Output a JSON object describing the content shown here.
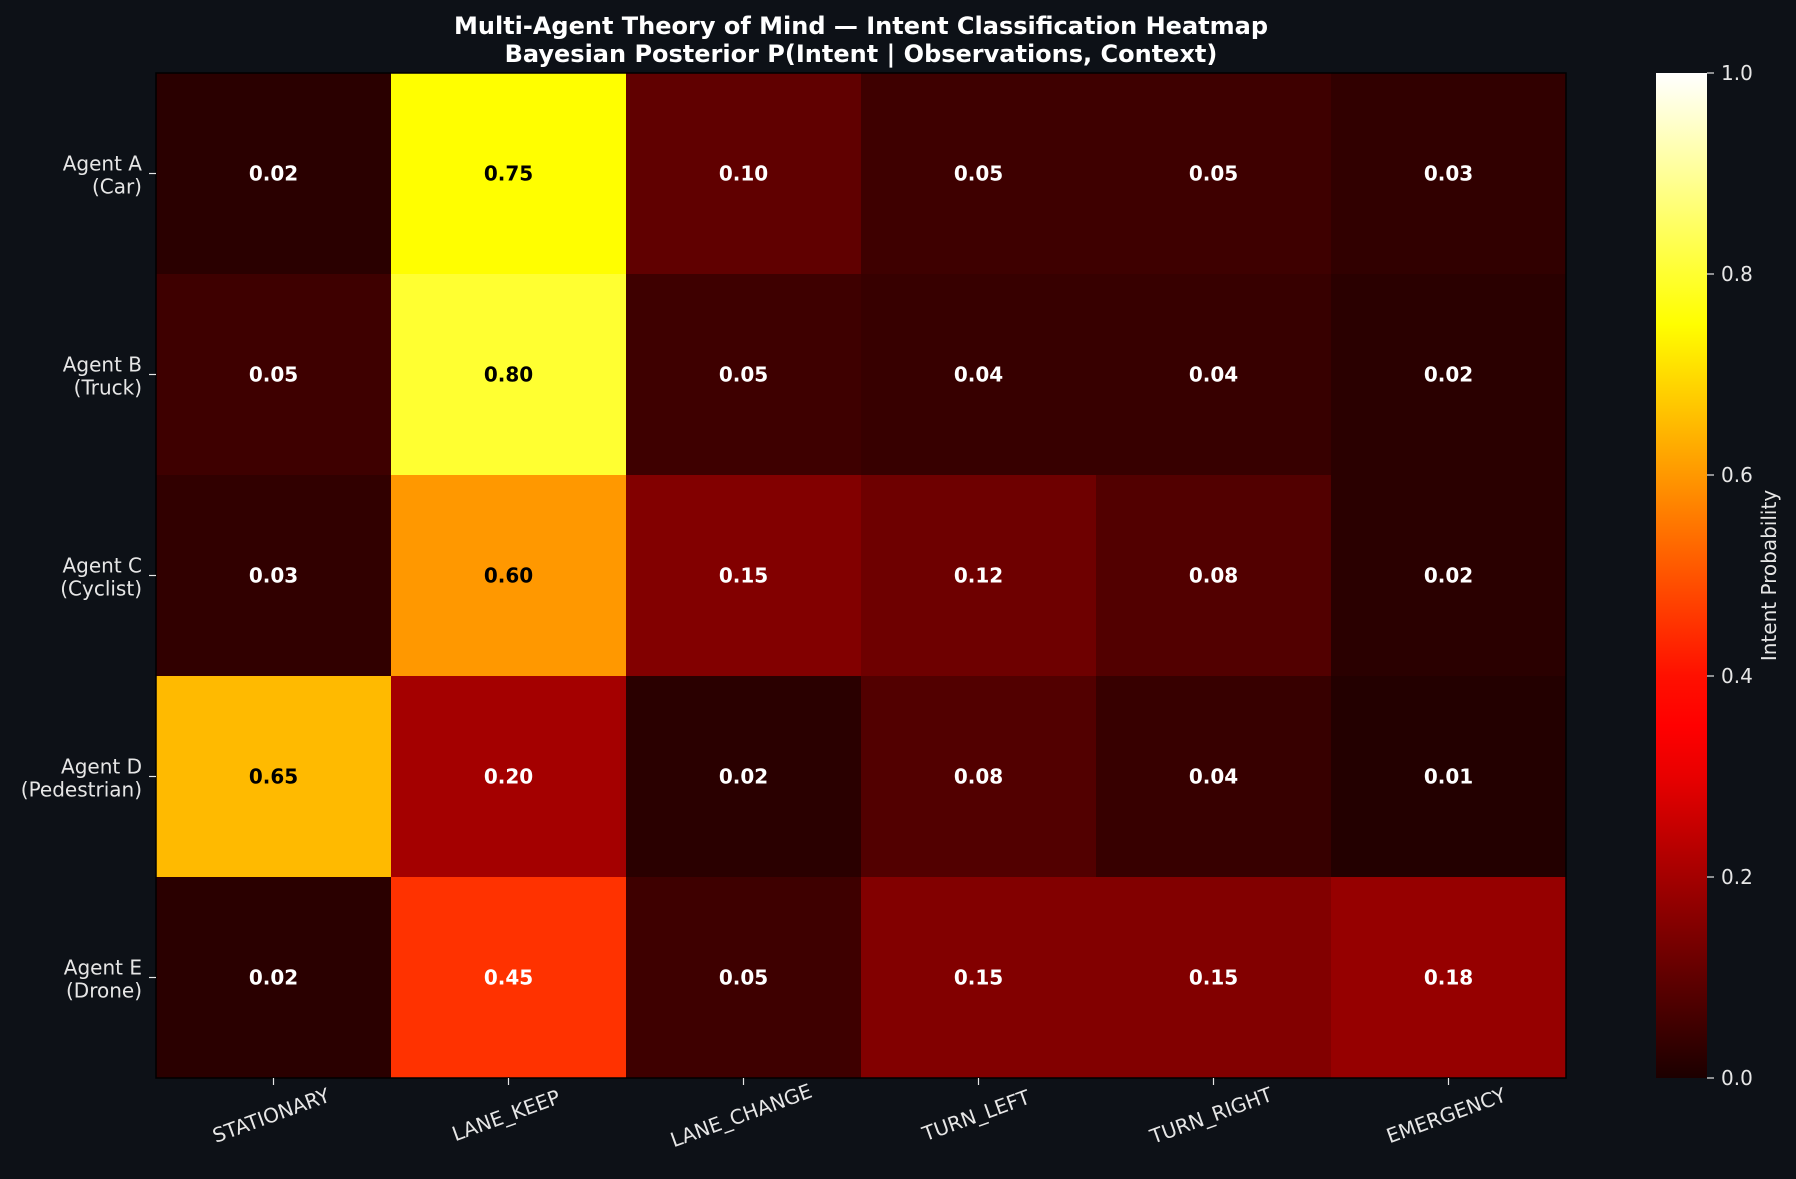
{
  "chart_data": {
    "type": "heatmap",
    "title_line1": "Multi-Agent Theory of Mind — Intent Classification Heatmap",
    "title_line2": "Bayesian Posterior P(Intent | Observations, Context)",
    "rows": [
      [
        "Agent A",
        "(Car)"
      ],
      [
        "Agent B",
        "(Truck)"
      ],
      [
        "Agent C",
        "(Cyclist)"
      ],
      [
        "Agent D",
        "(Pedestrian)"
      ],
      [
        "Agent E",
        "(Drone)"
      ]
    ],
    "columns": [
      "STATIONARY",
      "LANE_KEEP",
      "LANE_CHANGE",
      "TURN_LEFT",
      "TURN_RIGHT",
      "EMERGENCY"
    ],
    "values": [
      [
        0.02,
        0.75,
        0.1,
        0.05,
        0.05,
        0.03
      ],
      [
        0.05,
        0.8,
        0.05,
        0.04,
        0.04,
        0.02
      ],
      [
        0.03,
        0.6,
        0.15,
        0.12,
        0.08,
        0.02
      ],
      [
        0.65,
        0.2,
        0.02,
        0.08,
        0.04,
        0.01
      ],
      [
        0.02,
        0.45,
        0.05,
        0.15,
        0.15,
        0.18
      ]
    ],
    "colormap": "hot",
    "value_range": [
      0.0,
      1.0
    ],
    "colorbar_label": "Intent Probability",
    "colorbar_ticks": [
      "0.0",
      "0.2",
      "0.4",
      "0.6",
      "0.8",
      "1.0"
    ]
  },
  "colors": {
    "background": "#0d1117",
    "text": "#e6e6e6"
  }
}
